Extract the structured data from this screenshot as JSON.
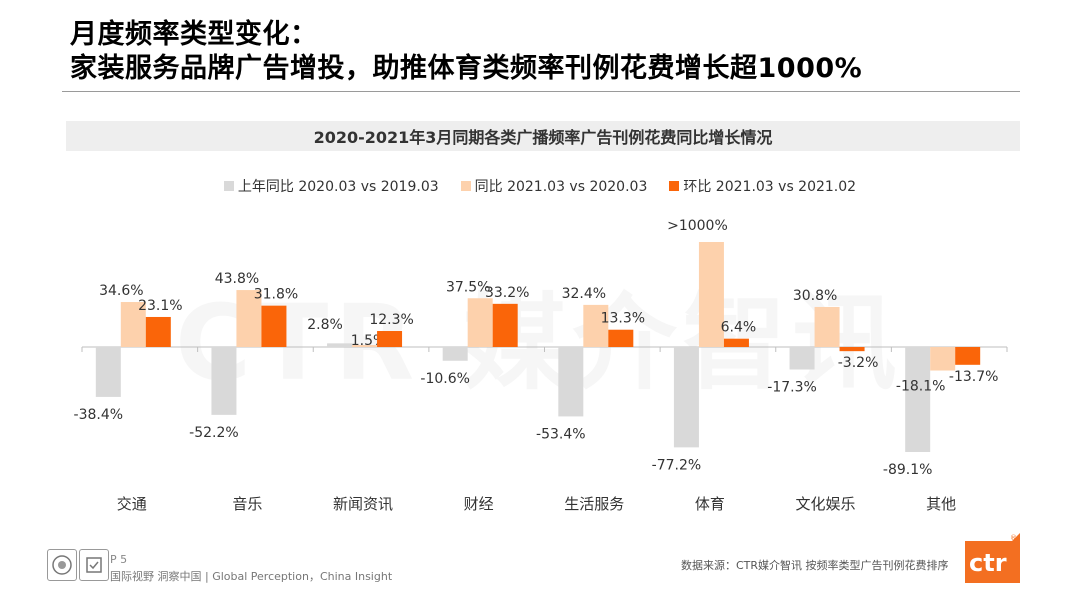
{
  "slide": {
    "title_line1": "月度频率类型变化：",
    "title_line2": "家装服务品牌广告增投，助推体育类频率刊例花费增长超1000%"
  },
  "chart_data": {
    "type": "bar",
    "title": "2020-2021年3月同期各类广播频率广告刊例花费同比增长情况",
    "categories": [
      "交通",
      "音乐",
      "新闻资讯",
      "财经",
      "生活服务",
      "体育",
      "文化娱乐",
      "其他"
    ],
    "series": [
      {
        "name": "上年同比 2020.03 vs 2019.03",
        "color": "#d9d9d9",
        "values": [
          -38.4,
          -52.2,
          2.8,
          -10.6,
          -53.4,
          -77.2,
          -17.3,
          -89.1
        ],
        "labels": [
          "-38.4%",
          "-52.2%",
          "2.8%",
          "-10.6%",
          "-53.4%",
          "-77.2%",
          "-17.3%",
          "-89.1%"
        ]
      },
      {
        "name": "同比 2021.03 vs 2020.03",
        "color": "#fdd1ac",
        "values": [
          34.6,
          43.8,
          1.5,
          37.5,
          32.4,
          1000,
          30.8,
          -18.1
        ],
        "labels": [
          "34.6%",
          "43.8%",
          "1.5%",
          "37.5%",
          "32.4%",
          ">1000%",
          "30.8%",
          "-18.1%"
        ]
      },
      {
        "name": "环比 2021.03 vs 2021.02",
        "color": "#fa6509",
        "values": [
          23.1,
          31.8,
          12.3,
          33.2,
          13.3,
          6.4,
          -3.2,
          -13.7
        ],
        "labels": [
          "23.1%",
          "31.8%",
          "12.3%",
          "33.2%",
          "13.3%",
          "6.4%",
          "-3.2%",
          "-13.7%"
        ]
      }
    ],
    "axis_break_note": "体育 同比 bar truncated (value >1000%)",
    "grid": false,
    "legend_position": "top"
  },
  "watermark": "CTR 媒介智讯",
  "footer": {
    "page": "P 5",
    "slogan": "国际视野  洞察中国 | Global Perception，China Insight",
    "source": "数据来源：CTR媒介智讯   按频率类型广告刊例花费排序",
    "logo_text": "ctr",
    "logo_color": "#f36f21"
  }
}
